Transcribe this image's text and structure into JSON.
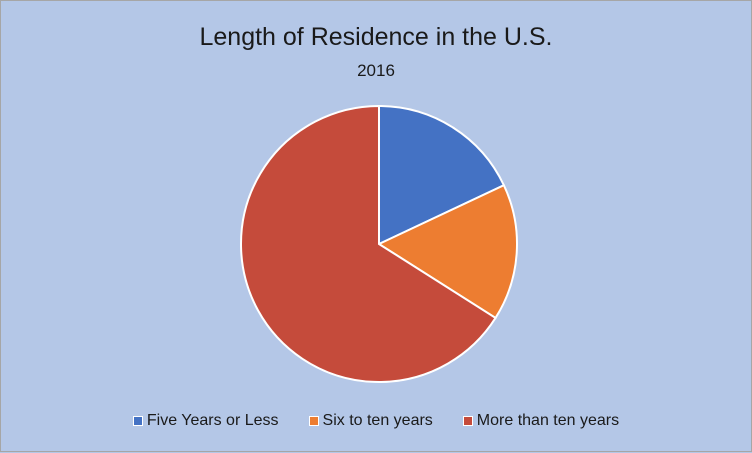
{
  "chart_data": {
    "type": "pie",
    "title": "Length of Residence in the U.S.",
    "subtitle": "2016",
    "categories": [
      "Five Years or Less",
      "Six to ten years",
      "More than ten years"
    ],
    "values": [
      18,
      16,
      66
    ],
    "unit": "percent (estimated)",
    "colors": [
      "#4472c4",
      "#ed7d31",
      "#c54b3b"
    ],
    "start_angle": "12 o'clock, clockwise",
    "legend_position": "bottom"
  }
}
